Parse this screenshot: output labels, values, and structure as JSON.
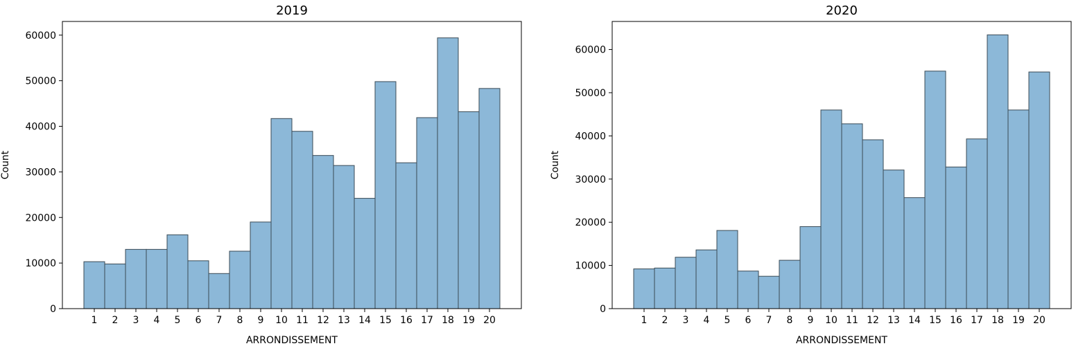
{
  "chart_data": [
    {
      "type": "bar",
      "title": "2019",
      "xlabel": "ARRONDISSEMENT",
      "ylabel": "Count",
      "categories": [
        "1",
        "2",
        "3",
        "4",
        "5",
        "6",
        "7",
        "8",
        "9",
        "10",
        "11",
        "12",
        "13",
        "14",
        "15",
        "16",
        "17",
        "18",
        "19",
        "20"
      ],
      "values": [
        10300,
        9800,
        13000,
        13000,
        16200,
        10500,
        7700,
        12600,
        19000,
        41700,
        38900,
        33600,
        31400,
        24200,
        49800,
        32000,
        41900,
        59400,
        43200,
        48300
      ],
      "ylim": [
        0,
        63000
      ],
      "yticks": [
        0,
        10000,
        20000,
        30000,
        40000,
        50000,
        60000
      ],
      "ytick_labels": [
        "0",
        "10000",
        "20000",
        "30000",
        "40000",
        "50000",
        "60000"
      ],
      "grid": false,
      "colors": {
        "bar_fill": "#8cb8d8",
        "bar_edge": "#3a4a55"
      }
    },
    {
      "type": "bar",
      "title": "2020",
      "xlabel": "ARRONDISSEMENT",
      "ylabel": "Count",
      "categories": [
        "1",
        "2",
        "3",
        "4",
        "5",
        "6",
        "7",
        "8",
        "9",
        "10",
        "11",
        "12",
        "13",
        "14",
        "15",
        "16",
        "17",
        "18",
        "19",
        "20"
      ],
      "values": [
        9200,
        9400,
        11900,
        13600,
        18100,
        8700,
        7500,
        11200,
        19000,
        46000,
        42800,
        39100,
        32100,
        25700,
        55000,
        32800,
        39300,
        63400,
        46000,
        54800
      ],
      "ylim": [
        0,
        66500
      ],
      "yticks": [
        0,
        10000,
        20000,
        30000,
        40000,
        50000,
        60000
      ],
      "ytick_labels": [
        "0",
        "10000",
        "20000",
        "30000",
        "40000",
        "50000",
        "60000"
      ],
      "grid": false,
      "colors": {
        "bar_fill": "#8cb8d8",
        "bar_edge": "#3a4a55"
      }
    }
  ]
}
